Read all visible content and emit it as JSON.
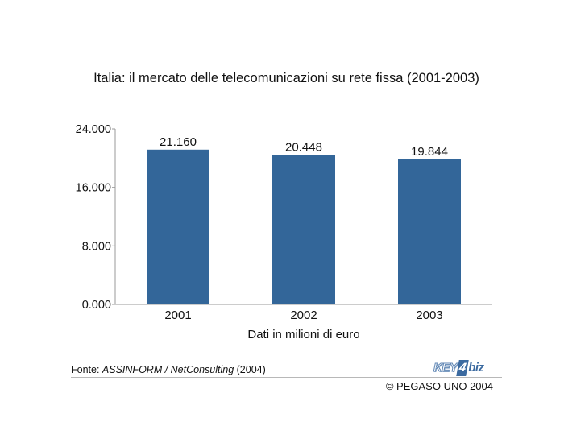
{
  "chart_data": {
    "type": "bar",
    "title": "Italia: il mercato delle telecomunicazioni su rete fissa (2001-2003)",
    "categories": [
      "2001",
      "2002",
      "2003"
    ],
    "values": [
      21160,
      20448,
      19844
    ],
    "value_labels": [
      "21.160",
      "20.448",
      "19.844"
    ],
    "xlabel": "Dati in milioni di euro",
    "ylabel": "",
    "ylim": [
      0,
      24000
    ],
    "y_ticks": [
      0,
      8000,
      16000,
      24000
    ],
    "y_tick_labels": [
      "0.000",
      "8.000",
      "16.000",
      "24.000"
    ],
    "bar_color": "#336699",
    "grid": false,
    "legend": "none"
  },
  "source": {
    "prefix": "Fonte: ",
    "name": "ASSINFORM / NetConsulting",
    "year": " (2004)"
  },
  "copyright": "© PEGASO UNO 2004",
  "logo": {
    "part1": "KEY",
    "part2": "4",
    "part3": "biz"
  }
}
